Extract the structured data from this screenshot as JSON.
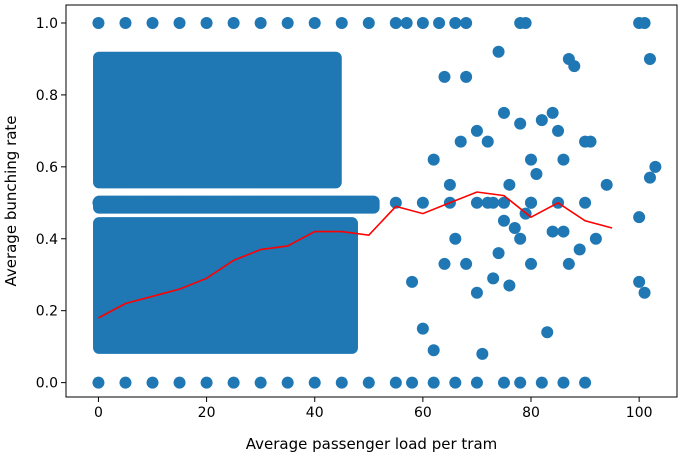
{
  "chart_data": {
    "type": "scatter",
    "title": "",
    "xlabel": "Average passenger load per tram",
    "ylabel": "Average bunching rate",
    "xlim": [
      -6,
      107
    ],
    "ylim": [
      -0.04,
      1.05
    ],
    "xticks": [
      0,
      20,
      40,
      60,
      80,
      100
    ],
    "yticks": [
      0.0,
      0.2,
      0.4,
      0.6,
      0.8,
      1.0
    ],
    "grid": false,
    "legend": "none",
    "colors": {
      "scatter": "#1f77b4",
      "line": "#ff0000",
      "axes": "#000000",
      "background": "#ffffff"
    },
    "series": [
      {
        "type": "scatter",
        "points": [
          [
            0,
            1.0
          ],
          [
            5,
            1.0
          ],
          [
            10,
            1.0
          ],
          [
            15,
            1.0
          ],
          [
            20,
            1.0
          ],
          [
            25,
            1.0
          ],
          [
            30,
            1.0
          ],
          [
            35,
            1.0
          ],
          [
            40,
            1.0
          ],
          [
            45,
            1.0
          ],
          [
            50,
            1.0
          ],
          [
            55,
            1.0
          ],
          [
            57,
            1.0
          ],
          [
            60,
            1.0
          ],
          [
            63,
            1.0
          ],
          [
            66,
            1.0
          ],
          [
            68,
            1.0
          ],
          [
            78,
            1.0
          ],
          [
            79,
            1.0
          ],
          [
            100,
            1.0
          ],
          [
            101,
            1.0
          ],
          [
            0,
            0.0
          ],
          [
            5,
            0.0
          ],
          [
            10,
            0.0
          ],
          [
            15,
            0.0
          ],
          [
            20,
            0.0
          ],
          [
            25,
            0.0
          ],
          [
            30,
            0.0
          ],
          [
            35,
            0.0
          ],
          [
            40,
            0.0
          ],
          [
            45,
            0.0
          ],
          [
            50,
            0.0
          ],
          [
            55,
            0.0
          ],
          [
            58,
            0.0
          ],
          [
            62,
            0.0
          ],
          [
            66,
            0.0
          ],
          [
            70,
            0.0
          ],
          [
            75,
            0.0
          ],
          [
            78,
            0.0
          ],
          [
            82,
            0.0
          ],
          [
            86,
            0.0
          ],
          [
            90,
            0.0
          ],
          [
            0,
            0.5
          ],
          [
            5,
            0.5
          ],
          [
            10,
            0.5
          ],
          [
            15,
            0.5
          ],
          [
            20,
            0.5
          ],
          [
            25,
            0.5
          ],
          [
            30,
            0.5
          ],
          [
            35,
            0.5
          ],
          [
            40,
            0.5
          ],
          [
            45,
            0.5
          ],
          [
            50,
            0.5
          ],
          [
            55,
            0.5
          ],
          [
            60,
            0.5
          ],
          [
            65,
            0.5
          ],
          [
            70,
            0.5
          ],
          [
            75,
            0.5
          ],
          [
            80,
            0.5
          ],
          [
            85,
            0.5
          ],
          [
            90,
            0.5
          ],
          [
            62,
            0.62
          ],
          [
            64,
            0.85
          ],
          [
            65,
            0.55
          ],
          [
            67,
            0.67
          ],
          [
            68,
            0.85
          ],
          [
            70,
            0.7
          ],
          [
            72,
            0.67
          ],
          [
            73,
            0.5
          ],
          [
            74,
            0.92
          ],
          [
            75,
            0.75
          ],
          [
            76,
            0.55
          ],
          [
            77,
            0.43
          ],
          [
            78,
            0.72
          ],
          [
            79,
            0.47
          ],
          [
            80,
            0.62
          ],
          [
            80,
            0.33
          ],
          [
            81,
            0.58
          ],
          [
            82,
            0.73
          ],
          [
            83,
            0.14
          ],
          [
            84,
            0.75
          ],
          [
            85,
            0.7
          ],
          [
            86,
            0.42
          ],
          [
            86,
            0.62
          ],
          [
            87,
            0.33
          ],
          [
            87,
            0.9
          ],
          [
            88,
            0.88
          ],
          [
            89,
            0.37
          ],
          [
            90,
            0.67
          ],
          [
            91,
            0.67
          ],
          [
            92,
            0.4
          ],
          [
            94,
            0.55
          ],
          [
            100,
            0.46
          ],
          [
            100,
            0.28
          ],
          [
            101,
            0.25
          ],
          [
            102,
            0.9
          ],
          [
            102,
            0.57
          ],
          [
            103,
            0.6
          ],
          [
            58,
            0.28
          ],
          [
            60,
            0.15
          ],
          [
            62,
            0.09
          ],
          [
            64,
            0.33
          ],
          [
            66,
            0.4
          ],
          [
            68,
            0.33
          ],
          [
            70,
            0.25
          ],
          [
            71,
            0.08
          ],
          [
            72,
            0.5
          ],
          [
            73,
            0.29
          ],
          [
            74,
            0.36
          ],
          [
            75,
            0.45
          ],
          [
            76,
            0.27
          ],
          [
            78,
            0.4
          ],
          [
            80,
            0.5
          ],
          [
            84,
            0.42
          ]
        ]
      },
      {
        "type": "line",
        "points": [
          [
            0,
            0.18
          ],
          [
            5,
            0.22
          ],
          [
            10,
            0.24
          ],
          [
            15,
            0.26
          ],
          [
            20,
            0.29
          ],
          [
            25,
            0.34
          ],
          [
            30,
            0.37
          ],
          [
            35,
            0.38
          ],
          [
            40,
            0.42
          ],
          [
            45,
            0.42
          ],
          [
            50,
            0.41
          ],
          [
            55,
            0.49
          ],
          [
            60,
            0.47
          ],
          [
            65,
            0.5
          ],
          [
            70,
            0.53
          ],
          [
            75,
            0.52
          ],
          [
            80,
            0.46
          ],
          [
            85,
            0.5
          ],
          [
            90,
            0.45
          ],
          [
            95,
            0.43
          ]
        ]
      }
    ]
  }
}
